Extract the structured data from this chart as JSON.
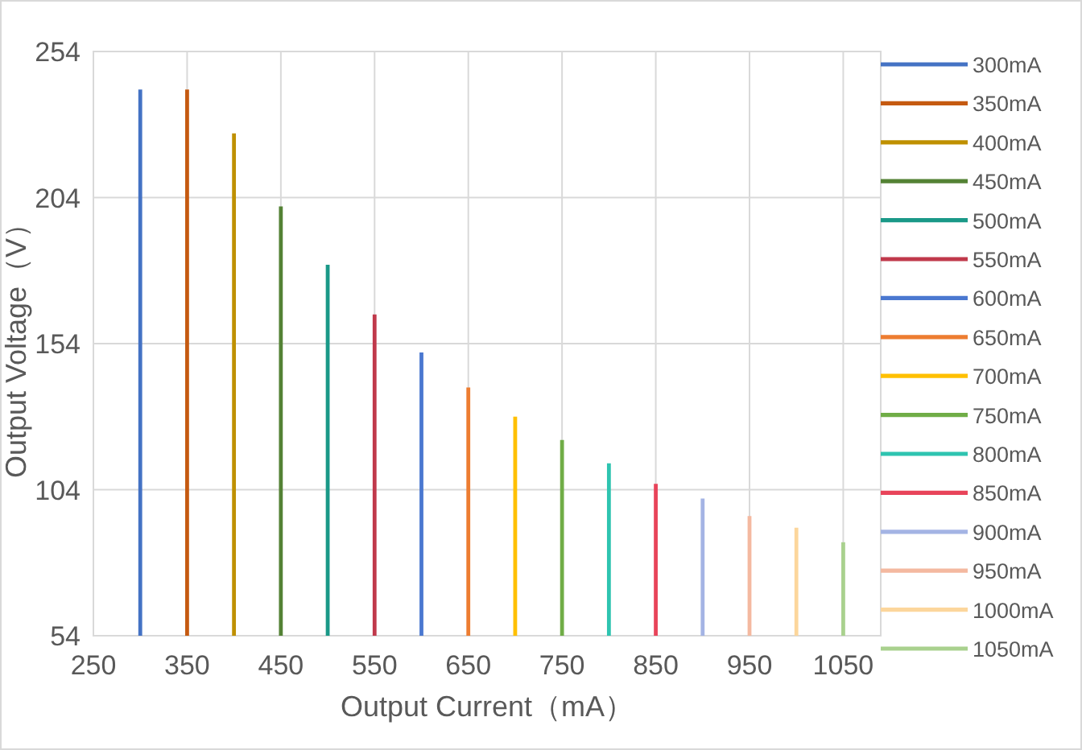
{
  "chart_data": {
    "type": "line",
    "xlabel": "Output Current（mA）",
    "ylabel": "Output Voltage（V）",
    "xlim": [
      250,
      1090
    ],
    "xticks": [
      250,
      350,
      450,
      550,
      650,
      750,
      850,
      950,
      1050
    ],
    "ylim": [
      54,
      254
    ],
    "yticks": [
      54,
      104,
      154,
      204,
      254
    ],
    "grid": true,
    "legend": "right",
    "marker": "none",
    "line_style": "solid",
    "series": [
      {
        "name": "300mA",
        "color": "#4472c4",
        "x": [
          300,
          300
        ],
        "values": [
          54,
          241
        ]
      },
      {
        "name": "350mA",
        "color": "#c55a11",
        "x": [
          350,
          350
        ],
        "values": [
          54,
          241
        ]
      },
      {
        "name": "400mA",
        "color": "#bf9000",
        "x": [
          400,
          400
        ],
        "values": [
          54,
          226
        ]
      },
      {
        "name": "450mA",
        "color": "#548235",
        "x": [
          450,
          450
        ],
        "values": [
          54,
          201
        ]
      },
      {
        "name": "500mA",
        "color": "#1a9988",
        "x": [
          500,
          500
        ],
        "values": [
          54,
          181
        ]
      },
      {
        "name": "550mA",
        "color": "#c0394b",
        "x": [
          550,
          550
        ],
        "values": [
          54,
          164
        ]
      },
      {
        "name": "600mA",
        "color": "#4a78d0",
        "x": [
          600,
          600
        ],
        "values": [
          54,
          151
        ]
      },
      {
        "name": "650mA",
        "color": "#ed7d31",
        "x": [
          650,
          650
        ],
        "values": [
          54,
          139
        ]
      },
      {
        "name": "700mA",
        "color": "#ffc000",
        "x": [
          700,
          700
        ],
        "values": [
          54,
          129
        ]
      },
      {
        "name": "750mA",
        "color": "#70ad47",
        "x": [
          750,
          750
        ],
        "values": [
          54,
          121
        ]
      },
      {
        "name": "800mA",
        "color": "#2ec4b0",
        "x": [
          800,
          800
        ],
        "values": [
          54,
          113
        ]
      },
      {
        "name": "850mA",
        "color": "#e8445a",
        "x": [
          850,
          850
        ],
        "values": [
          54,
          106
        ]
      },
      {
        "name": "900mA",
        "color": "#a4b4e4",
        "x": [
          900,
          900
        ],
        "values": [
          54,
          101
        ]
      },
      {
        "name": "950mA",
        "color": "#f4b9a0",
        "x": [
          950,
          950
        ],
        "values": [
          54,
          95
        ]
      },
      {
        "name": "1000mA",
        "color": "#fcd69c",
        "x": [
          1000,
          1000
        ],
        "values": [
          54,
          91
        ]
      },
      {
        "name": "1050mA",
        "color": "#a9d18e",
        "x": [
          1050,
          1050
        ],
        "values": [
          54,
          86
        ]
      }
    ]
  }
}
